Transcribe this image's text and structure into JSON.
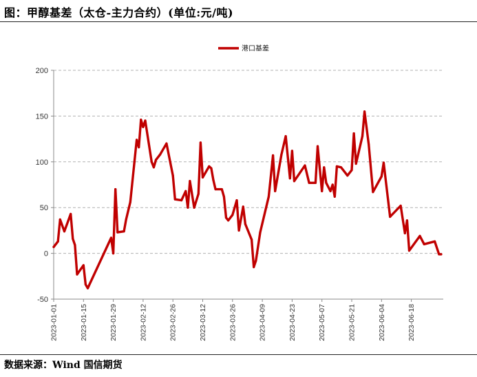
{
  "title": "图：甲醇基差（太仓-主力合约）(单位:元/吨)",
  "source": "数据来源：Wind 国信期货",
  "colors": {
    "series": "#c00000",
    "grid": "#b0b0b0",
    "axis": "#888888"
  },
  "chart_data": {
    "type": "line",
    "title": "甲醇基差（太仓-主力合约）",
    "unit": "元/吨",
    "legend": {
      "position": "top-center"
    },
    "grid": true,
    "ylim": [
      -50,
      200
    ],
    "yticks": [
      -50,
      0,
      50,
      100,
      150,
      200
    ],
    "xlim": [
      "2023-01-01",
      "2023-07-03"
    ],
    "xticks": [
      "2023-01-01",
      "2023-01-15",
      "2023-01-29",
      "2023-02-12",
      "2023-02-26",
      "2023-03-12",
      "2023-03-26",
      "2023-04-09",
      "2023-04-23",
      "2023-05-07",
      "2023-05-21",
      "2023-06-04",
      "2023-06-18"
    ],
    "series": [
      {
        "name": "港口基差",
        "points": [
          [
            "2023-01-01",
            7
          ],
          [
            "2023-01-03",
            13
          ],
          [
            "2023-01-04",
            37
          ],
          [
            "2023-01-06",
            24
          ],
          [
            "2023-01-09",
            43
          ],
          [
            "2023-01-10",
            16
          ],
          [
            "2023-01-11",
            9
          ],
          [
            "2023-01-12",
            -23
          ],
          [
            "2023-01-15",
            -13
          ],
          [
            "2023-01-16",
            -34
          ],
          [
            "2023-01-17",
            -38
          ],
          [
            "2023-01-28",
            17
          ],
          [
            "2023-01-29",
            0
          ],
          [
            "2023-01-30",
            70
          ],
          [
            "2023-01-31",
            23
          ],
          [
            "2023-02-03",
            24
          ],
          [
            "2023-02-04",
            37
          ],
          [
            "2023-02-06",
            56
          ],
          [
            "2023-02-09",
            124
          ],
          [
            "2023-02-10",
            116
          ],
          [
            "2023-02-11",
            146
          ],
          [
            "2023-02-12",
            138
          ],
          [
            "2023-02-13",
            145
          ],
          [
            "2023-02-16",
            100
          ],
          [
            "2023-02-17",
            94
          ],
          [
            "2023-02-18",
            102
          ],
          [
            "2023-02-20",
            108
          ],
          [
            "2023-02-23",
            120
          ],
          [
            "2023-02-26",
            85
          ],
          [
            "2023-02-27",
            59
          ],
          [
            "2023-03-02",
            58
          ],
          [
            "2023-03-04",
            68
          ],
          [
            "2023-03-05",
            50
          ],
          [
            "2023-03-06",
            79
          ],
          [
            "2023-03-08",
            50
          ],
          [
            "2023-03-10",
            65
          ],
          [
            "2023-03-11",
            121
          ],
          [
            "2023-03-12",
            83
          ],
          [
            "2023-03-15",
            95
          ],
          [
            "2023-03-16",
            93
          ],
          [
            "2023-03-17",
            80
          ],
          [
            "2023-03-18",
            70
          ],
          [
            "2023-03-21",
            70
          ],
          [
            "2023-03-22",
            62
          ],
          [
            "2023-03-23",
            39
          ],
          [
            "2023-03-24",
            36
          ],
          [
            "2023-03-26",
            42
          ],
          [
            "2023-03-28",
            58
          ],
          [
            "2023-03-29",
            25
          ],
          [
            "2023-03-31",
            51
          ],
          [
            "2023-04-01",
            32
          ],
          [
            "2023-04-04",
            15
          ],
          [
            "2023-04-05",
            -15
          ],
          [
            "2023-04-06",
            -8
          ],
          [
            "2023-04-08",
            23
          ],
          [
            "2023-04-12",
            62
          ],
          [
            "2023-04-14",
            107
          ],
          [
            "2023-04-15",
            68
          ],
          [
            "2023-04-18",
            108
          ],
          [
            "2023-04-20",
            128
          ],
          [
            "2023-04-22",
            82
          ],
          [
            "2023-04-23",
            112
          ],
          [
            "2023-04-24",
            79
          ],
          [
            "2023-04-29",
            96
          ],
          [
            "2023-05-01",
            77
          ],
          [
            "2023-05-04",
            77
          ],
          [
            "2023-05-05",
            117
          ],
          [
            "2023-05-07",
            68
          ],
          [
            "2023-05-08",
            94
          ],
          [
            "2023-05-09",
            77
          ],
          [
            "2023-05-11",
            68
          ],
          [
            "2023-05-12",
            75
          ],
          [
            "2023-05-13",
            62
          ],
          [
            "2023-05-14",
            95
          ],
          [
            "2023-05-16",
            94
          ],
          [
            "2023-05-19",
            85
          ],
          [
            "2023-05-21",
            91
          ],
          [
            "2023-05-22",
            131
          ],
          [
            "2023-05-23",
            98
          ],
          [
            "2023-05-26",
            128
          ],
          [
            "2023-05-27",
            155
          ],
          [
            "2023-05-29",
            119
          ],
          [
            "2023-05-31",
            67
          ],
          [
            "2023-06-04",
            84
          ],
          [
            "2023-06-05",
            99
          ],
          [
            "2023-06-08",
            40
          ],
          [
            "2023-06-13",
            52
          ],
          [
            "2023-06-15",
            22
          ],
          [
            "2023-06-16",
            36
          ],
          [
            "2023-06-17",
            3
          ],
          [
            "2023-06-22",
            19
          ],
          [
            "2023-06-24",
            10
          ],
          [
            "2023-06-29",
            13
          ],
          [
            "2023-07-01",
            -1
          ],
          [
            "2023-07-02",
            -1
          ]
        ]
      }
    ]
  }
}
